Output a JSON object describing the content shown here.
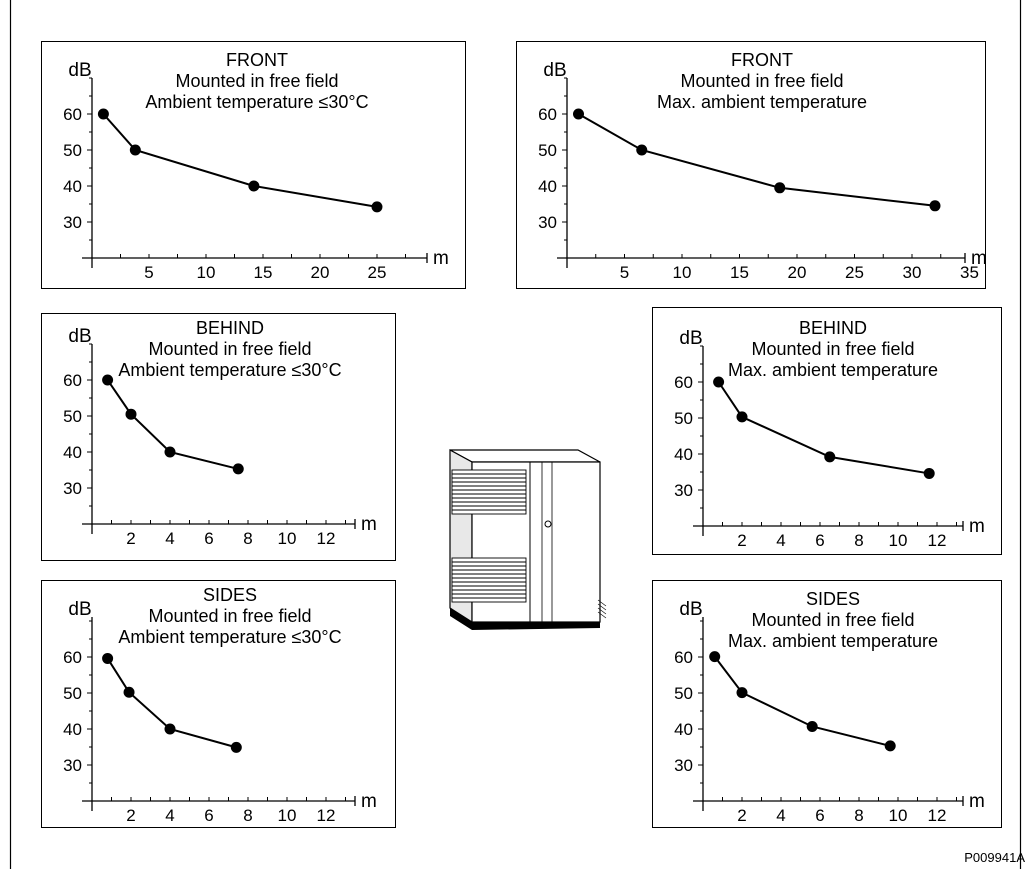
{
  "figure_id": "P009941A",
  "chart_data": [
    {
      "type": "line",
      "title": [
        "FRONT",
        "Mounted in free field",
        "Ambient temperature ≤30°C"
      ],
      "ylabel": "dB",
      "xlabel": "m",
      "xticks": [
        5,
        10,
        15,
        20,
        25
      ],
      "yticks": [
        30,
        40,
        50,
        60
      ],
      "xlim": [
        0,
        30
      ],
      "ylim": [
        20,
        70
      ],
      "x": [
        1,
        3.8,
        14.2,
        25
      ],
      "y": [
        60,
        50,
        40,
        34.2
      ]
    },
    {
      "type": "line",
      "title": [
        "FRONT",
        "Mounted in free field",
        "Max. ambient temperature"
      ],
      "ylabel": "dB",
      "xlabel": "m",
      "xticks": [
        5,
        10,
        15,
        20,
        25,
        30,
        35
      ],
      "yticks": [
        30,
        40,
        50,
        60
      ],
      "xlim": [
        0,
        35
      ],
      "ylim": [
        20,
        70
      ],
      "x": [
        1,
        6.5,
        18.5,
        32
      ],
      "y": [
        60,
        50,
        39.5,
        34.5
      ]
    },
    {
      "type": "line",
      "title": [
        "BEHIND",
        "Mounted in free field",
        "Ambient temperature ≤30°C"
      ],
      "ylabel": "dB",
      "xlabel": "m",
      "xticks": [
        2,
        4,
        6,
        8,
        10,
        12
      ],
      "yticks": [
        30,
        40,
        50,
        60
      ],
      "xlim": [
        0,
        14
      ],
      "ylim": [
        20,
        70
      ],
      "x": [
        0.8,
        2,
        4,
        7.5
      ],
      "y": [
        60,
        50.5,
        40,
        35.3
      ]
    },
    {
      "type": "line",
      "title": [
        "BEHIND",
        "Mounted in free field",
        "Max. ambient temperature"
      ],
      "ylabel": "dB",
      "xlabel": "m",
      "xticks": [
        2,
        4,
        6,
        8,
        10,
        12
      ],
      "yticks": [
        30,
        40,
        50,
        60
      ],
      "xlim": [
        0,
        14
      ],
      "ylim": [
        20,
        70
      ],
      "x": [
        0.8,
        2,
        6.5,
        11.6
      ],
      "y": [
        60,
        50.3,
        39.2,
        34.6
      ]
    },
    {
      "type": "line",
      "title": [
        "SIDES",
        "Mounted in free field",
        "Ambient temperature ≤30°C"
      ],
      "ylabel": "dB",
      "xlabel": "m",
      "xticks": [
        2,
        4,
        6,
        8,
        10,
        12
      ],
      "yticks": [
        30,
        40,
        50,
        60
      ],
      "xlim": [
        0,
        14
      ],
      "ylim": [
        20,
        70
      ],
      "x": [
        0.8,
        1.9,
        4,
        7.4
      ],
      "y": [
        59.6,
        50.2,
        40,
        34.9
      ]
    },
    {
      "type": "line",
      "title": [
        "SIDES",
        "Mounted in free field",
        "Max. ambient temperature"
      ],
      "ylabel": "dB",
      "xlabel": "m",
      "xticks": [
        2,
        4,
        6,
        8,
        10,
        12
      ],
      "yticks": [
        30,
        40,
        50,
        60
      ],
      "xlim": [
        0,
        14
      ],
      "ylim": [
        20,
        70
      ],
      "x": [
        0.6,
        2,
        5.6,
        9.6
      ],
      "y": [
        60.1,
        50.1,
        40.7,
        35.3
      ]
    }
  ]
}
